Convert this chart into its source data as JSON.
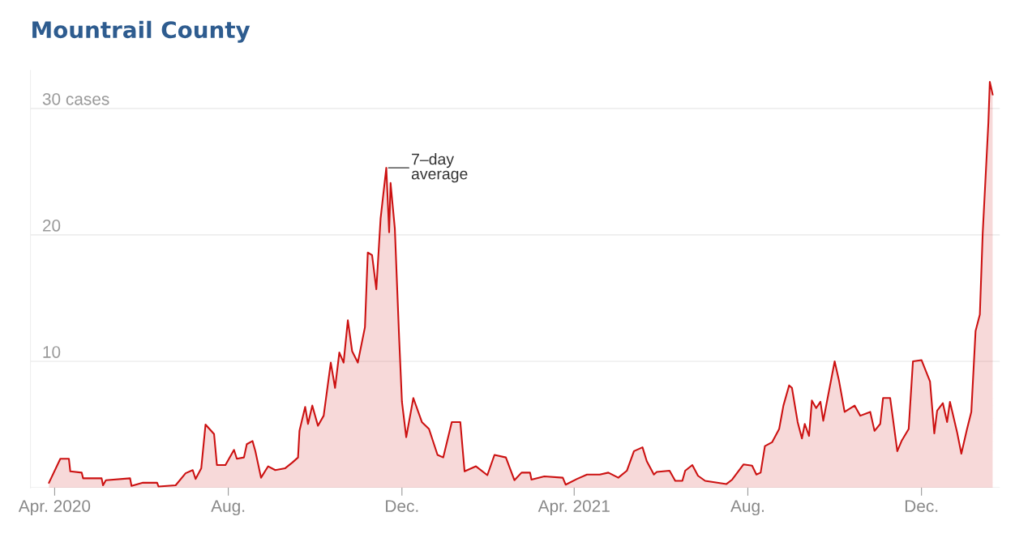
{
  "chart_data": {
    "type": "area",
    "title": "Mountrail County",
    "x": [
      "2020-03-28",
      "2020-04-05",
      "2020-04-11",
      "2020-04-12",
      "2020-04-20",
      "2020-04-21",
      "2020-05-04",
      "2020-05-05",
      "2020-05-07",
      "2020-05-24",
      "2020-05-25",
      "2020-06-02",
      "2020-06-12",
      "2020-06-13",
      "2020-06-25",
      "2020-07-02",
      "2020-07-07",
      "2020-07-09",
      "2020-07-13",
      "2020-07-16",
      "2020-07-22",
      "2020-07-24",
      "2020-07-30",
      "2020-08-05",
      "2020-08-07",
      "2020-08-12",
      "2020-08-14",
      "2020-08-18",
      "2020-08-20",
      "2020-08-24",
      "2020-08-29",
      "2020-09-03",
      "2020-09-10",
      "2020-09-15",
      "2020-09-19",
      "2020-09-20",
      "2020-09-24",
      "2020-09-26",
      "2020-09-29",
      "2020-10-03",
      "2020-10-07",
      "2020-10-12",
      "2020-10-15",
      "2020-10-18",
      "2020-10-21",
      "2020-10-24",
      "2020-10-27",
      "2020-10-31",
      "2020-11-05",
      "2020-11-07",
      "2020-11-10",
      "2020-11-13",
      "2020-11-16",
      "2020-11-20",
      "2020-11-22",
      "2020-11-23",
      "2020-11-26",
      "2020-11-29",
      "2020-12-01",
      "2020-12-04",
      "2020-12-09",
      "2020-12-15",
      "2020-12-20",
      "2020-12-26",
      "2020-12-30",
      "2021-01-05",
      "2021-01-11",
      "2021-01-14",
      "2021-01-22",
      "2021-01-30",
      "2021-02-04",
      "2021-02-12",
      "2021-02-18",
      "2021-02-23",
      "2021-03-01",
      "2021-03-02",
      "2021-03-11",
      "2021-03-24",
      "2021-03-26",
      "2021-04-03",
      "2021-04-10",
      "2021-04-19",
      "2021-04-25",
      "2021-05-02",
      "2021-05-08",
      "2021-05-13",
      "2021-05-19",
      "2021-05-22",
      "2021-05-27",
      "2021-05-29",
      "2021-06-07",
      "2021-06-11",
      "2021-06-16",
      "2021-06-18",
      "2021-06-23",
      "2021-06-27",
      "2021-07-02",
      "2021-07-17",
      "2021-07-21",
      "2021-07-29",
      "2021-08-04",
      "2021-08-07",
      "2021-08-10",
      "2021-08-13",
      "2021-08-18",
      "2021-08-23",
      "2021-08-26",
      "2021-08-30",
      "2021-09-01",
      "2021-09-05",
      "2021-09-08",
      "2021-09-10",
      "2021-09-13",
      "2021-09-15",
      "2021-09-18",
      "2021-09-21",
      "2021-09-23",
      "2021-10-01",
      "2021-10-04",
      "2021-10-08",
      "2021-10-15",
      "2021-10-19",
      "2021-10-26",
      "2021-10-29",
      "2021-11-02",
      "2021-11-04",
      "2021-11-09",
      "2021-11-14",
      "2021-11-17",
      "2021-11-22",
      "2021-11-25",
      "2021-12-01",
      "2021-12-07",
      "2021-12-10",
      "2021-12-12",
      "2021-12-16",
      "2021-12-19",
      "2021-12-21",
      "2021-12-26",
      "2021-12-29",
      "2022-01-02",
      "2022-01-05",
      "2022-01-08",
      "2022-01-11",
      "2022-01-13",
      "2022-01-17",
      "2022-01-18",
      "2022-01-20"
    ],
    "series": [
      {
        "color": "#cc1111",
        "values": [
          0.4,
          2.3,
          2.3,
          1.3,
          1.2,
          0.75,
          0.75,
          0.2,
          0.6,
          0.75,
          0.15,
          0.4,
          0.4,
          0.1,
          0.2,
          1.15,
          1.4,
          0.7,
          1.55,
          5.0,
          4.25,
          1.8,
          1.8,
          3.0,
          2.3,
          2.4,
          3.45,
          3.7,
          2.9,
          0.8,
          1.7,
          1.4,
          1.55,
          2.0,
          2.4,
          4.5,
          6.4,
          5.05,
          6.5,
          4.9,
          5.7,
          9.9,
          7.9,
          10.7,
          9.9,
          13.25,
          10.8,
          9.9,
          12.7,
          18.6,
          18.4,
          15.7,
          21.3,
          25.3,
          20.2,
          24.1,
          20.5,
          11.9,
          6.8,
          4.0,
          7.1,
          5.2,
          4.65,
          2.6,
          2.4,
          5.2,
          5.2,
          1.3,
          1.7,
          1.0,
          2.6,
          2.4,
          0.6,
          1.2,
          1.2,
          0.65,
          0.9,
          0.8,
          0.25,
          0.7,
          1.05,
          1.05,
          1.2,
          0.8,
          1.35,
          2.9,
          3.2,
          2.1,
          1.05,
          1.25,
          1.35,
          0.55,
          0.55,
          1.35,
          1.8,
          0.95,
          0.55,
          0.3,
          0.65,
          1.85,
          1.75,
          1.05,
          1.2,
          3.3,
          3.6,
          4.65,
          6.5,
          8.1,
          7.9,
          5.2,
          3.9,
          5.05,
          4.1,
          6.9,
          6.3,
          6.8,
          5.3,
          10.0,
          8.5,
          6.0,
          6.5,
          5.7,
          6.0,
          4.5,
          5.05,
          7.1,
          7.1,
          2.9,
          3.7,
          4.65,
          10.0,
          10.1,
          8.4,
          4.3,
          6.1,
          6.7,
          5.2,
          6.8,
          4.4,
          2.7,
          4.65,
          6.0,
          12.4,
          13.7,
          20.1,
          28.9,
          32.1,
          31.1
        ]
      }
    ],
    "xlim": [
      "2020-03-15",
      "2022-01-25"
    ],
    "xticks": [
      {
        "value": "2020-04-01",
        "label": "Apr. 2020"
      },
      {
        "value": "2020-08-01",
        "label": "Aug."
      },
      {
        "value": "2020-12-01",
        "label": "Dec."
      },
      {
        "value": "2021-04-01",
        "label": "Apr. 2021"
      },
      {
        "value": "2021-08-01",
        "label": "Aug."
      },
      {
        "value": "2021-12-01",
        "label": "Dec."
      }
    ],
    "ylim": [
      0,
      33
    ],
    "yticks": [
      {
        "value": 0,
        "label": null
      },
      10,
      20,
      {
        "value": 30,
        "label": "30 cases"
      }
    ],
    "grid": "y",
    "annotations": [
      {
        "text": "7–day\naverage",
        "x": "2020-11-20",
        "y": 25.3
      }
    ]
  }
}
